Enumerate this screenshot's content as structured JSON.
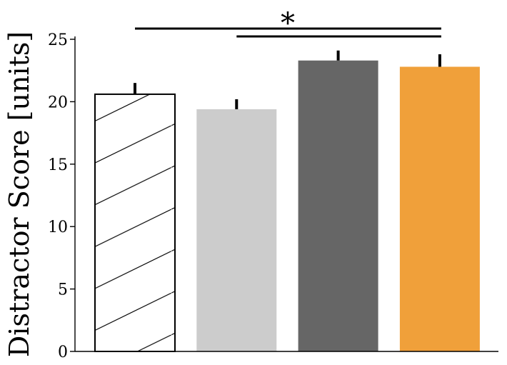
{
  "chart_data": {
    "type": "bar",
    "title": "",
    "xlabel": "",
    "ylabel": "Distractor Score [units]",
    "ylim": [
      0,
      25
    ],
    "yticks": [
      0,
      5,
      10,
      15,
      20,
      25
    ],
    "grid": false,
    "legend": "none",
    "categories": [
      "",
      "",
      "",
      ""
    ],
    "values": [
      20.6,
      19.4,
      23.3,
      22.8
    ],
    "errors": [
      0.9,
      0.8,
      0.8,
      1.0
    ],
    "bar_fills": [
      "#ffffff",
      "#cccccc",
      "#666666",
      "#f0a03a"
    ],
    "bar_patterns": [
      "diagonal-hatch",
      "none",
      "none",
      "none"
    ],
    "significance": {
      "lines": [
        {
          "from_bar": 1,
          "to_bar": 4
        },
        {
          "from_bar": 2,
          "to_bar": 4
        }
      ],
      "label": "*"
    }
  }
}
